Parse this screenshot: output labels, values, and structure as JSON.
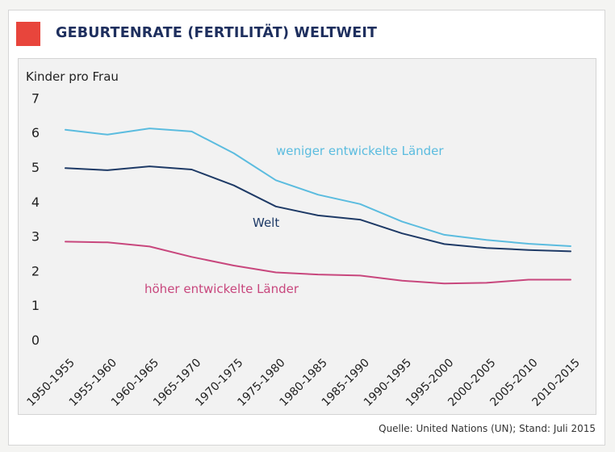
{
  "header": {
    "title": "GEBURTENRATE (FERTILITÄT) WELTWEIT",
    "accent_color": "#e8453c",
    "title_color": "#1e2f5e"
  },
  "footer": {
    "source": "Quelle: United Nations (UN); Stand: Juli 2015"
  },
  "chart_data": {
    "type": "line",
    "title": "GEBURTENRATE (FERTILITÄT) WELTWEIT",
    "ylabel": "Kinder pro Frau",
    "xlabel": "",
    "ylim": [
      0,
      7
    ],
    "yticks": [
      0,
      1,
      2,
      3,
      4,
      5,
      6,
      7
    ],
    "grid": false,
    "categories": [
      "1950-1955",
      "1955-1960",
      "1960-1965",
      "1965-1970",
      "1970-1975",
      "1975-1980",
      "1980-1985",
      "1985-1990",
      "1990-1995",
      "1995-2000",
      "2000-2005",
      "2005-2010",
      "2010-2015"
    ],
    "series": [
      {
        "name": "weniger entwickelte Länder",
        "color": "#5bbcdf",
        "values": [
          6.08,
          5.94,
          6.12,
          6.03,
          5.4,
          4.62,
          4.2,
          3.93,
          3.42,
          3.04,
          2.89,
          2.78,
          2.71
        ]
      },
      {
        "name": "Welt",
        "color": "#1e3a66",
        "values": [
          4.97,
          4.91,
          5.02,
          4.93,
          4.47,
          3.86,
          3.6,
          3.48,
          3.08,
          2.77,
          2.66,
          2.6,
          2.56
        ]
      },
      {
        "name": "höher entwickelte Länder",
        "color": "#c8477d",
        "values": [
          2.84,
          2.82,
          2.7,
          2.4,
          2.15,
          1.95,
          1.89,
          1.86,
          1.71,
          1.63,
          1.65,
          1.74,
          1.74
        ]
      }
    ]
  }
}
